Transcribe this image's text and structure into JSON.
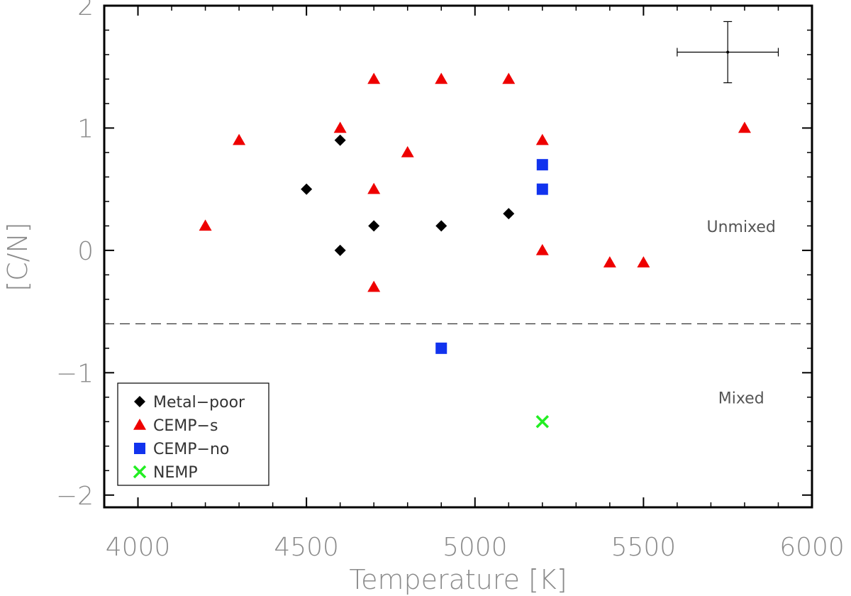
{
  "chart_data": {
    "type": "scatter",
    "xlabel": "Temperature [K]",
    "ylabel": "[C/N]",
    "xlim": [
      3900,
      6000
    ],
    "ylim": [
      -2.1,
      2.0
    ],
    "xticks": [
      4000,
      4500,
      5000,
      5500,
      6000
    ],
    "yticks": [
      -2,
      -1,
      0,
      1,
      2
    ],
    "xtick_labels": [
      "4000",
      "4500",
      "5000",
      "5500",
      "6000"
    ],
    "ytick_labels": [
      "−2",
      "−1",
      "0",
      "1",
      "2"
    ],
    "grid": false,
    "legend_position": "bottom-left",
    "series": [
      {
        "name": "Metal−poor",
        "marker": "diamond",
        "color": "#000000",
        "points": [
          {
            "x": 4500,
            "y": 0.5
          },
          {
            "x": 4600,
            "y": 0.9
          },
          {
            "x": 4600,
            "y": 0.0
          },
          {
            "x": 4700,
            "y": 0.2
          },
          {
            "x": 4900,
            "y": 0.2
          },
          {
            "x": 5100,
            "y": 0.3
          }
        ]
      },
      {
        "name": "CEMP−s",
        "marker": "triangle",
        "color": "#ee0000",
        "points": [
          {
            "x": 4200,
            "y": 0.2
          },
          {
            "x": 4300,
            "y": 0.9
          },
          {
            "x": 4600,
            "y": 1.0
          },
          {
            "x": 4700,
            "y": 1.4
          },
          {
            "x": 4700,
            "y": 0.5
          },
          {
            "x": 4700,
            "y": -0.3
          },
          {
            "x": 4800,
            "y": 0.8
          },
          {
            "x": 4900,
            "y": 1.4
          },
          {
            "x": 5100,
            "y": 1.4
          },
          {
            "x": 5200,
            "y": 0.9
          },
          {
            "x": 5200,
            "y": 0.0
          },
          {
            "x": 5400,
            "y": -0.1
          },
          {
            "x": 5500,
            "y": -0.1
          },
          {
            "x": 5800,
            "y": 1.0
          }
        ]
      },
      {
        "name": "CEMP−no",
        "marker": "square",
        "color": "#1133ee",
        "points": [
          {
            "x": 5200,
            "y": 0.7
          },
          {
            "x": 5200,
            "y": 0.5
          },
          {
            "x": 4900,
            "y": -0.8
          }
        ]
      },
      {
        "name": "NEMP",
        "marker": "cross",
        "color": "#22ee22",
        "points": [
          {
            "x": 5200,
            "y": -1.4
          }
        ]
      }
    ],
    "reference_line": {
      "y": -0.6,
      "style": "dashed",
      "color": "#333333"
    },
    "error_bar": {
      "x": 5750,
      "y": 1.62,
      "xerr": 150,
      "yerr": 0.25
    },
    "annotations": [
      {
        "text": "Unmixed",
        "x": 5790,
        "y": 0.15
      },
      {
        "text": "Mixed",
        "x": 5790,
        "y": -1.25
      }
    ]
  }
}
